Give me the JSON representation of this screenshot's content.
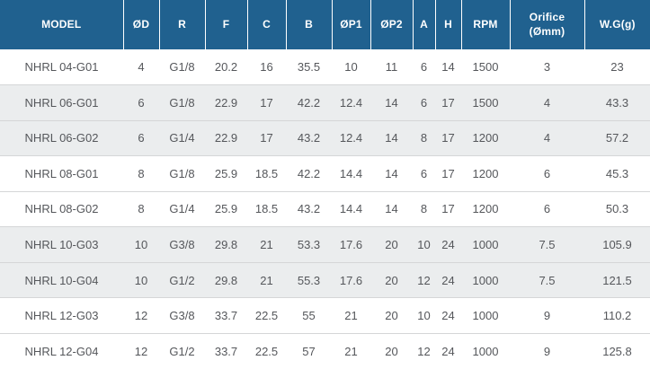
{
  "table": {
    "columns": [
      {
        "key": "model",
        "label": "MODEL"
      },
      {
        "key": "od",
        "label": "ØD"
      },
      {
        "key": "r",
        "label": "R"
      },
      {
        "key": "f",
        "label": "F"
      },
      {
        "key": "c",
        "label": "C"
      },
      {
        "key": "b",
        "label": "B"
      },
      {
        "key": "op1",
        "label": "ØP1"
      },
      {
        "key": "op2",
        "label": "ØP2"
      },
      {
        "key": "a",
        "label": "A"
      },
      {
        "key": "h",
        "label": "H"
      },
      {
        "key": "rpm",
        "label": "RPM"
      },
      {
        "key": "orifice",
        "label": "Orifice (Ømm)",
        "label_lines": [
          "Orifice",
          "(Ømm)"
        ]
      },
      {
        "key": "wg",
        "label": "W.G(g)"
      }
    ],
    "rows": [
      [
        "NHRL 04-G01",
        "4",
        "G1/8",
        "20.2",
        "16",
        "35.5",
        "10",
        "11",
        "6",
        "14",
        "1500",
        "3",
        "23"
      ],
      [
        "NHRL 06-G01",
        "6",
        "G1/8",
        "22.9",
        "17",
        "42.2",
        "12.4",
        "14",
        "6",
        "17",
        "1500",
        "4",
        "43.3"
      ],
      [
        "NHRL 06-G02",
        "6",
        "G1/4",
        "22.9",
        "17",
        "43.2",
        "12.4",
        "14",
        "8",
        "17",
        "1200",
        "4",
        "57.2"
      ],
      [
        "NHRL 08-G01",
        "8",
        "G1/8",
        "25.9",
        "18.5",
        "42.2",
        "14.4",
        "14",
        "6",
        "17",
        "1200",
        "6",
        "45.3"
      ],
      [
        "NHRL 08-G02",
        "8",
        "G1/4",
        "25.9",
        "18.5",
        "43.2",
        "14.4",
        "14",
        "8",
        "17",
        "1200",
        "6",
        "50.3"
      ],
      [
        "NHRL 10-G03",
        "10",
        "G3/8",
        "29.8",
        "21",
        "53.3",
        "17.6",
        "20",
        "10",
        "24",
        "1000",
        "7.5",
        "105.9"
      ],
      [
        "NHRL 10-G04",
        "10",
        "G1/2",
        "29.8",
        "21",
        "55.3",
        "17.6",
        "20",
        "12",
        "24",
        "1000",
        "7.5",
        "121.5"
      ],
      [
        "NHRL 12-G03",
        "12",
        "G3/8",
        "33.7",
        "22.5",
        "55",
        "21",
        "20",
        "10",
        "24",
        "1000",
        "9",
        "110.2"
      ],
      [
        "NHRL 12-G04",
        "12",
        "G1/2",
        "33.7",
        "22.5",
        "57",
        "21",
        "20",
        "12",
        "24",
        "1000",
        "9",
        "125.8"
      ]
    ]
  },
  "colors": {
    "header_bg": "#20618f",
    "header_text": "#ffffff",
    "row_bg": "#ffffff",
    "row_alt_bg": "#ebedee",
    "divider": "#d5d6d7",
    "cell_text": "#55575b"
  }
}
